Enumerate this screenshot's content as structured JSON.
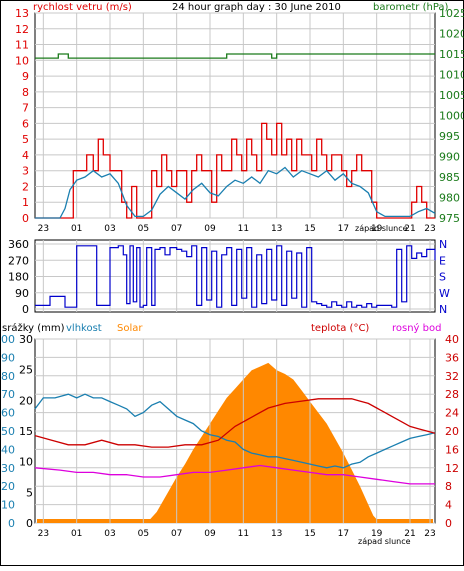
{
  "colors": {
    "wind": "#e00000",
    "gust": "#1a7fb0",
    "baro": "#1a7a1a",
    "dir": "#0000cc",
    "humid": "#1a7fb0",
    "solar": "#ff8800",
    "temp": "#cc0000",
    "dew": "#dd00dd",
    "rain": "#ff8800",
    "plot_bg": "#ffffff",
    "grid": "#c8c8c8",
    "frame": "#000000"
  },
  "x_axis": {
    "ticks": [
      "23",
      "01",
      "03",
      "05",
      "07",
      "09",
      "11",
      "13",
      "15",
      "17",
      "19",
      "21",
      "23"
    ],
    "sunrise_label": "",
    "sunset_label": "západ slunce"
  },
  "chart_data": [
    {
      "type": "line",
      "title": "24 hour graph day : 30 June 2010",
      "left_label": "rychlost vetru (m/s)",
      "right_label": "barometr (hPa)",
      "y_left": {
        "min": 0,
        "max": 13,
        "ticks": [
          "0",
          "1",
          "2",
          "3",
          "4",
          "5",
          "6",
          "7",
          "8",
          "9",
          "10",
          "11",
          "12",
          "13"
        ]
      },
      "y_right": {
        "min": 975,
        "max": 1025,
        "ticks": [
          "975",
          "980",
          "985",
          "990",
          "995",
          "1000",
          "1005",
          "1010",
          "1015",
          "1020",
          "1025"
        ]
      },
      "x_hours": [
        -1.5,
        22.5
      ],
      "series": [
        {
          "key": "wind",
          "axis": "left",
          "step": true,
          "x": [
            -1.5,
            -0.2,
            0.2,
            0.8,
            1.2,
            1.6,
            2.0,
            2.3,
            2.6,
            3.0,
            3.3,
            3.7,
            4.0,
            4.3,
            4.6,
            4.9,
            5.2,
            5.5,
            5.8,
            6.1,
            6.4,
            6.7,
            7.0,
            7.3,
            7.6,
            7.9,
            8.2,
            8.5,
            8.8,
            9.1,
            9.4,
            9.7,
            10.0,
            10.3,
            10.6,
            10.9,
            11.2,
            11.5,
            11.8,
            12.1,
            12.4,
            12.7,
            13.0,
            13.3,
            13.6,
            13.9,
            14.2,
            14.5,
            14.8,
            15.1,
            15.4,
            15.7,
            16.0,
            16.3,
            16.6,
            16.9,
            17.2,
            17.5,
            17.8,
            18.1,
            18.4,
            18.7,
            19.0,
            19.3,
            19.6,
            19.9,
            20.2,
            20.5,
            20.8,
            21.1,
            21.4,
            21.7,
            22.0,
            22.5
          ],
          "values": [
            0,
            0,
            0,
            3,
            3,
            4,
            3,
            5,
            4,
            3,
            3,
            1,
            0,
            2,
            0,
            0,
            0,
            3,
            2,
            4,
            3,
            2,
            3,
            3,
            1,
            3,
            4,
            3,
            3,
            1,
            4,
            3,
            3,
            5,
            4,
            3,
            5,
            4,
            3,
            6,
            5,
            4,
            6,
            4,
            5,
            3,
            5,
            4,
            4,
            3,
            5,
            4,
            3,
            4,
            4,
            3,
            2,
            3,
            4,
            3,
            3,
            1,
            0,
            0,
            0,
            0,
            0,
            0,
            0,
            1,
            2,
            1,
            0,
            0
          ]
        },
        {
          "key": "gust",
          "axis": "left",
          "step": false,
          "x": [
            -1.5,
            0.0,
            0.3,
            0.6,
            1.0,
            1.5,
            2.0,
            2.5,
            3.0,
            3.5,
            4.0,
            4.5,
            5.0,
            5.5,
            6.0,
            6.5,
            7.0,
            7.5,
            8.0,
            8.5,
            9.0,
            9.5,
            10.0,
            10.5,
            11.0,
            11.5,
            12.0,
            12.5,
            13.0,
            13.5,
            14.0,
            14.5,
            15.0,
            15.5,
            16.0,
            16.5,
            17.0,
            17.5,
            18.0,
            18.5,
            19.0,
            19.5,
            20.0,
            20.5,
            21.0,
            21.5,
            22.0,
            22.5
          ],
          "values": [
            0,
            0,
            0.6,
            1.8,
            2.4,
            2.6,
            3.0,
            2.6,
            2.8,
            2.2,
            0.8,
            0.1,
            0.1,
            0.5,
            1.5,
            2.0,
            1.6,
            1.2,
            1.8,
            2.2,
            1.6,
            1.4,
            2.0,
            2.4,
            2.2,
            2.6,
            2.2,
            3.0,
            2.8,
            3.2,
            2.6,
            3.0,
            2.8,
            2.6,
            3.0,
            2.4,
            2.8,
            2.2,
            2.0,
            1.6,
            0.4,
            0.1,
            0.1,
            0.1,
            0.1,
            0.4,
            0.6,
            0.3
          ]
        },
        {
          "key": "baro",
          "axis": "right",
          "step": true,
          "x": [
            -1.5,
            -0.5,
            -0.1,
            0.5,
            10.0,
            12.4,
            12.7,
            13.0,
            13.8,
            20.5,
            22.5
          ],
          "values": [
            1014,
            1014,
            1015,
            1014,
            1015,
            1015,
            1014,
            1015,
            1015,
            1015,
            1015
          ]
        }
      ]
    },
    {
      "type": "line",
      "left_ticks": [
        "0",
        "90",
        "180",
        "270",
        "360"
      ],
      "right_ticks": [
        "N",
        "W",
        "S",
        "E",
        "N"
      ],
      "y_range": [
        0,
        360
      ],
      "series": [
        {
          "key": "dir",
          "x": [
            -1.5,
            -0.8,
            -0.6,
            -0.2,
            0.3,
            0.8,
            1.0,
            1.2,
            2.0,
            2.2,
            3.0,
            3.2,
            3.5,
            3.8,
            4.0,
            4.2,
            4.4,
            4.6,
            4.8,
            5.0,
            5.2,
            5.5,
            5.7,
            6.0,
            6.3,
            6.6,
            7.0,
            7.3,
            7.6,
            7.9,
            8.2,
            8.5,
            8.8,
            9.1,
            9.4,
            9.7,
            10.0,
            10.3,
            10.6,
            10.9,
            11.2,
            11.5,
            11.8,
            12.1,
            12.4,
            12.7,
            13.0,
            13.3,
            13.6,
            13.9,
            14.2,
            14.5,
            14.8,
            15.1,
            15.4,
            15.7,
            16.0,
            16.3,
            16.6,
            16.9,
            17.2,
            17.5,
            17.8,
            18.1,
            18.4,
            18.7,
            19.0,
            19.3,
            19.6,
            19.9,
            20.2,
            20.5,
            20.8,
            21.1,
            21.4,
            21.7,
            22.0,
            22.5
          ],
          "values": [
            20,
            20,
            70,
            70,
            10,
            10,
            350,
            350,
            350,
            20,
            340,
            340,
            350,
            300,
            30,
            350,
            40,
            340,
            10,
            20,
            340,
            20,
            330,
            340,
            300,
            340,
            330,
            320,
            290,
            350,
            20,
            340,
            50,
            320,
            10,
            300,
            340,
            20,
            330,
            60,
            340,
            10,
            300,
            30,
            330,
            50,
            350,
            20,
            320,
            60,
            310,
            10,
            340,
            40,
            30,
            20,
            10,
            40,
            20,
            10,
            40,
            10,
            20,
            10,
            30,
            10,
            20,
            20,
            20,
            10,
            330,
            40,
            350,
            280,
            310,
            290,
            330,
            270
          ]
        }
      ]
    },
    {
      "type": "area",
      "labels": {
        "rain": "srážky (mm)",
        "humid": "vlhkost",
        "solar": "Solar",
        "temp": "teplota (°C)",
        "dew": "rosný bod"
      },
      "left_rain_ticks": [
        "0",
        "5",
        "10",
        "15",
        "20",
        "25",
        "30"
      ],
      "left_humid_ticks": [
        "0",
        "10",
        "20",
        "30",
        "40",
        "50",
        "60",
        "70",
        "80",
        "90",
        "100"
      ],
      "right_ticks": [
        "0",
        "4",
        "8",
        "12",
        "16",
        "20",
        "24",
        "28",
        "32",
        "36",
        "40"
      ],
      "temp_range": [
        0,
        40
      ],
      "humid_range": [
        0,
        100
      ],
      "solar_range": [
        0,
        1000
      ],
      "series": [
        {
          "key": "solar",
          "x": [
            -1.5,
            5.2,
            5.8,
            6.5,
            7.0,
            7.5,
            8.0,
            8.5,
            9.0,
            9.5,
            10.0,
            10.5,
            11.0,
            11.5,
            12.0,
            12.5,
            13.0,
            13.5,
            14.0,
            14.5,
            15.0,
            15.5,
            16.0,
            16.5,
            17.0,
            17.5,
            18.0,
            18.5,
            18.8,
            19.2,
            22.5
          ],
          "values": [
            0,
            0,
            60,
            170,
            250,
            320,
            400,
            470,
            540,
            610,
            680,
            730,
            780,
            830,
            850,
            870,
            830,
            810,
            780,
            720,
            660,
            600,
            540,
            460,
            380,
            290,
            200,
            100,
            40,
            0,
            0
          ]
        },
        {
          "key": "humid",
          "x": [
            -1.5,
            -1.0,
            -0.3,
            0.5,
            1.0,
            1.5,
            2.0,
            2.5,
            3.0,
            3.5,
            4.0,
            4.5,
            5.0,
            5.5,
            6.0,
            6.5,
            7.0,
            7.5,
            8.0,
            8.5,
            9.0,
            9.5,
            10.0,
            10.5,
            11.0,
            11.5,
            12.0,
            12.5,
            13.0,
            13.5,
            14.0,
            14.5,
            15.0,
            15.5,
            16.0,
            16.5,
            17.0,
            17.5,
            18.0,
            18.5,
            19.0,
            19.5,
            20.0,
            20.5,
            21.0,
            21.5,
            22.0,
            22.5
          ],
          "values": [
            62,
            68,
            68,
            70,
            68,
            70,
            68,
            68,
            66,
            64,
            62,
            58,
            60,
            64,
            66,
            62,
            58,
            56,
            54,
            50,
            48,
            47,
            45,
            44,
            40,
            38,
            37,
            36,
            36,
            35,
            34,
            33,
            32,
            31,
            30,
            31,
            30,
            32,
            33,
            36,
            38,
            40,
            42,
            44,
            46,
            47,
            48,
            49
          ]
        },
        {
          "key": "temp",
          "x": [
            -1.5,
            -0.5,
            0.5,
            1.5,
            2.5,
            3.5,
            4.5,
            5.5,
            6.5,
            7.5,
            8.5,
            9.5,
            10.5,
            11.5,
            12.5,
            13.5,
            14.5,
            15.5,
            16.5,
            17.5,
            18.0,
            18.5,
            19.0,
            19.5,
            20.0,
            20.5,
            21.0,
            21.5,
            22.0,
            22.5
          ],
          "values": [
            19,
            18,
            17,
            17,
            18,
            17,
            17,
            16.5,
            16.5,
            17,
            17,
            18,
            21,
            23,
            25,
            26,
            26.5,
            27,
            27,
            27,
            26.5,
            26,
            25,
            24,
            23,
            22,
            21,
            20.5,
            20,
            19.5
          ]
        },
        {
          "key": "dew",
          "x": [
            -1.5,
            0,
            1,
            2,
            3,
            4,
            5,
            6,
            7,
            8,
            9,
            10,
            11,
            12,
            13,
            14,
            15,
            16,
            17,
            18,
            19,
            20,
            21,
            22,
            22.5
          ],
          "values": [
            12,
            11.5,
            11,
            11,
            10.5,
            10.5,
            10,
            10,
            10.5,
            11,
            11,
            11.5,
            12,
            12.5,
            12,
            11.5,
            11,
            10.5,
            10.5,
            10,
            9.5,
            9,
            8.5,
            8.5,
            8.5
          ]
        }
      ]
    }
  ]
}
